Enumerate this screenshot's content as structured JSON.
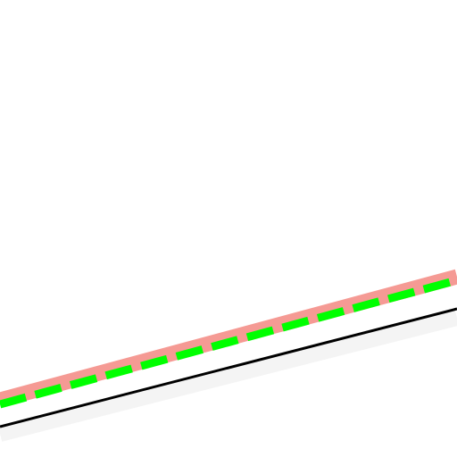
{
  "scene": {
    "background_color": "#ffffff",
    "lines": [
      {
        "name": "shadow-band",
        "color": "#f4f4f4",
        "style": "solid"
      },
      {
        "name": "black-line",
        "color": "#000000",
        "style": "solid"
      },
      {
        "name": "pink-band",
        "color": "#f59a94",
        "style": "solid"
      },
      {
        "name": "green-dashed-line",
        "color": "#00ff00",
        "style": "dashed"
      }
    ]
  }
}
